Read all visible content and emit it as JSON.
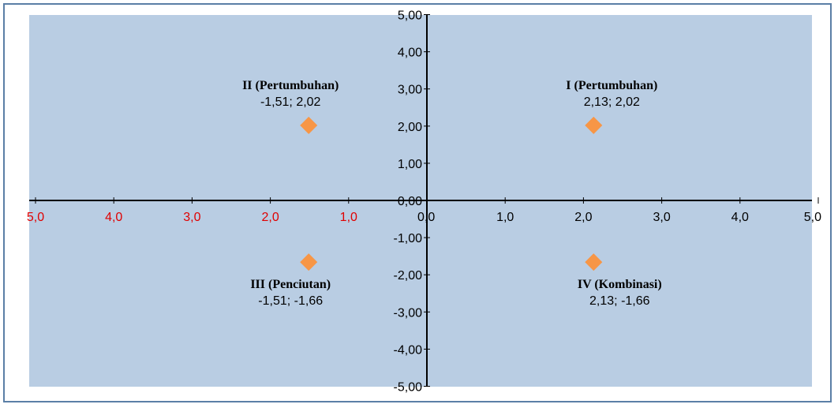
{
  "chart_data": {
    "type": "scatter",
    "xlim": [
      -5,
      5
    ],
    "ylim": [
      -5,
      5
    ],
    "x_ticks": [
      {
        "value": -5,
        "label": "5,0"
      },
      {
        "value": -4,
        "label": "4,0"
      },
      {
        "value": -3,
        "label": "3,0"
      },
      {
        "value": -2,
        "label": "2,0"
      },
      {
        "value": -1,
        "label": "1,0"
      },
      {
        "value": 0,
        "label": "0,0"
      },
      {
        "value": 1,
        "label": "1,0"
      },
      {
        "value": 2,
        "label": "2,0"
      },
      {
        "value": 3,
        "label": "3,0"
      },
      {
        "value": 4,
        "label": "4,0"
      },
      {
        "value": 5,
        "label": "5,0"
      }
    ],
    "y_ticks": [
      {
        "value": 5,
        "label": "5,00"
      },
      {
        "value": 4,
        "label": "4,00"
      },
      {
        "value": 3,
        "label": "3,00"
      },
      {
        "value": 2,
        "label": "2,00"
      },
      {
        "value": 1,
        "label": "1,00"
      },
      {
        "value": 0,
        "label": "0,00"
      },
      {
        "value": -1,
        "label": "-1,00"
      },
      {
        "value": -2,
        "label": "-2,00"
      },
      {
        "value": -3,
        "label": "-3,00"
      },
      {
        "value": -4,
        "label": "-4,00"
      },
      {
        "value": -5,
        "label": "-5,00"
      }
    ],
    "negative_tick_color": "#e00000",
    "plot_background": "#b9cde3",
    "marker_color": "#f79646",
    "marker_shape": "diamond",
    "points": [
      {
        "x": 2.13,
        "y": 2.02,
        "quadrant": "I (Pertumbuhan)",
        "coord_label": "2,13; 2,02"
      },
      {
        "x": -1.51,
        "y": 2.02,
        "quadrant": "II (Pertumbuhan)",
        "coord_label": "-1,51; 2,02"
      },
      {
        "x": -1.51,
        "y": -1.66,
        "quadrant": "III (Penciutan)",
        "coord_label": "-1,51; -1,66"
      },
      {
        "x": 2.13,
        "y": -1.66,
        "quadrant": "IV (Kombinasi)",
        "coord_label": "2,13; -1,66"
      }
    ]
  }
}
